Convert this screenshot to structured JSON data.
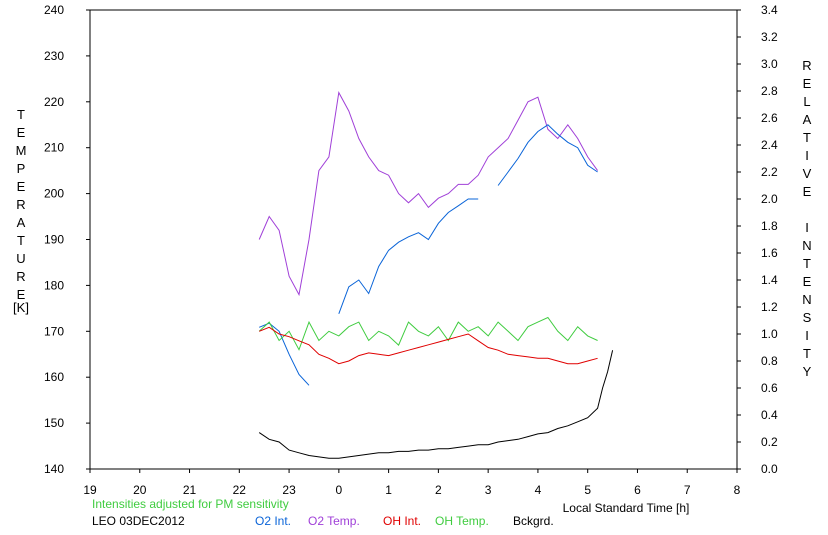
{
  "chart_data": {
    "type": "line",
    "left_axis": {
      "label": "TEMPERATURE",
      "unit_label": "[K]",
      "ylim": [
        140,
        240
      ],
      "ticks": [
        "240",
        "230",
        "220",
        "210",
        "200",
        "190",
        "180",
        "170",
        "160",
        "150",
        "140"
      ]
    },
    "right_axis": {
      "label": "RELATIVE INTENSITY",
      "ylim": [
        0.0,
        3.4
      ],
      "ticks": [
        "3.4",
        "3.2",
        "3.0",
        "2.8",
        "2.6",
        "2.4",
        "2.2",
        "2.0",
        "1.8",
        "1.6",
        "1.4",
        "1.2",
        "1.0",
        "0.8",
        "0.6",
        "0.4",
        "0.2",
        "0.0"
      ]
    },
    "x_axis": {
      "label": "Local Standard Time [h]",
      "ticks": [
        "19",
        "20",
        "21",
        "22",
        "23",
        "0",
        "1",
        "2",
        "3",
        "4",
        "5",
        "6",
        "7",
        "8"
      ]
    },
    "note": "Intensities adjusted for PM sensitivity",
    "site_date": "LEO 03DEC2012",
    "colors": {
      "O2 Int.": "#0a64d8",
      "O2 Temp.": "#a040d8",
      "OH Int.": "#e00000",
      "OH Temp.": "#40cc40",
      "Bckgrd.": "#000000"
    },
    "legend": [
      "O2 Int.",
      "O2 Temp.",
      "OH Int.",
      "OH Temp.",
      "Bckgrd."
    ],
    "series": [
      {
        "name": "O2 Temp.",
        "axis": "left",
        "x": [
          22.4,
          22.6,
          22.8,
          23.0,
          23.2,
          23.4,
          23.6,
          23.8,
          24.0,
          24.2,
          24.4,
          24.6,
          24.8,
          25.0,
          25.2,
          25.4,
          25.6,
          25.8,
          26.0,
          26.2,
          26.4,
          26.6,
          26.8,
          27.0,
          27.2,
          27.4,
          27.6,
          27.8,
          28.0,
          28.2,
          28.4,
          28.6,
          28.8,
          29.0,
          29.2
        ],
        "y": [
          190,
          195,
          192,
          182,
          178,
          190,
          205,
          208,
          222,
          218,
          212,
          208,
          205,
          204,
          200,
          198,
          200,
          197,
          199,
          200,
          202,
          202,
          204,
          208,
          210,
          212,
          216,
          220,
          221,
          214,
          212,
          215,
          212,
          208,
          205
        ]
      },
      {
        "name": "O2 Int.",
        "axis": "right",
        "x": [
          22.4,
          22.6,
          22.8,
          23.0,
          23.2,
          23.4,
          23.6,
          23.8,
          24.0,
          24.2,
          24.4,
          24.6,
          24.8,
          25.0,
          25.2,
          25.4,
          25.6,
          25.8,
          26.0,
          26.2,
          26.4,
          26.6,
          26.8,
          27.0,
          27.2,
          27.4,
          27.6,
          27.8,
          28.0,
          28.2,
          28.4,
          28.6,
          28.8,
          29.0,
          29.2
        ],
        "y": [
          1.05,
          1.08,
          1.02,
          0.85,
          0.7,
          0.62,
          null,
          null,
          1.15,
          1.35,
          1.4,
          1.3,
          1.5,
          1.62,
          1.68,
          1.72,
          1.75,
          1.7,
          1.82,
          1.9,
          1.95,
          2.0,
          2.0,
          null,
          2.1,
          2.2,
          2.3,
          2.42,
          2.5,
          2.55,
          2.48,
          2.42,
          2.38,
          2.25,
          2.2
        ]
      },
      {
        "name": "OH Temp.",
        "axis": "left",
        "x": [
          22.4,
          22.6,
          22.8,
          23.0,
          23.2,
          23.4,
          23.6,
          23.8,
          24.0,
          24.2,
          24.4,
          24.6,
          24.8,
          25.0,
          25.2,
          25.4,
          25.6,
          25.8,
          26.0,
          26.2,
          26.4,
          26.6,
          26.8,
          27.0,
          27.2,
          27.4,
          27.6,
          27.8,
          28.0,
          28.2,
          28.4,
          28.6,
          28.8,
          29.0,
          29.2
        ],
        "y": [
          170,
          172,
          168,
          170,
          166,
          172,
          168,
          170,
          169,
          171,
          172,
          168,
          170,
          169,
          167,
          172,
          170,
          169,
          171,
          168,
          172,
          170,
          171,
          169,
          172,
          170,
          168,
          171,
          172,
          173,
          170,
          168,
          171,
          169,
          168
        ]
      },
      {
        "name": "OH Int.",
        "axis": "right",
        "x": [
          22.4,
          22.6,
          22.8,
          23.0,
          23.2,
          23.4,
          23.6,
          23.8,
          24.0,
          24.2,
          24.4,
          24.6,
          24.8,
          25.0,
          25.2,
          25.4,
          25.6,
          25.8,
          26.0,
          26.2,
          26.4,
          26.6,
          26.8,
          27.0,
          27.2,
          27.4,
          27.6,
          27.8,
          28.0,
          28.2,
          28.4,
          28.6,
          28.8,
          29.0,
          29.2
        ],
        "y": [
          1.02,
          1.05,
          1.0,
          0.98,
          0.95,
          0.92,
          0.85,
          0.82,
          0.78,
          0.8,
          0.84,
          0.86,
          0.85,
          0.84,
          0.86,
          0.88,
          0.9,
          0.92,
          0.94,
          0.96,
          0.98,
          1.0,
          0.95,
          0.9,
          0.88,
          0.85,
          0.84,
          0.83,
          0.82,
          0.82,
          0.8,
          0.78,
          0.78,
          0.8,
          0.82
        ]
      },
      {
        "name": "Bckgrd.",
        "axis": "right",
        "x": [
          22.4,
          22.6,
          22.8,
          23.0,
          23.2,
          23.4,
          23.6,
          23.8,
          24.0,
          24.2,
          24.4,
          24.6,
          24.8,
          25.0,
          25.2,
          25.4,
          25.6,
          25.8,
          26.0,
          26.2,
          26.4,
          26.6,
          26.8,
          27.0,
          27.2,
          27.4,
          27.6,
          27.8,
          28.0,
          28.2,
          28.4,
          28.6,
          28.8,
          29.0,
          29.2,
          29.3,
          29.4,
          29.5
        ],
        "y": [
          0.27,
          0.22,
          0.2,
          0.14,
          0.12,
          0.1,
          0.09,
          0.08,
          0.08,
          0.09,
          0.1,
          0.11,
          0.12,
          0.12,
          0.13,
          0.13,
          0.14,
          0.14,
          0.15,
          0.15,
          0.16,
          0.17,
          0.18,
          0.18,
          0.2,
          0.21,
          0.22,
          0.24,
          0.26,
          0.27,
          0.3,
          0.32,
          0.35,
          0.38,
          0.45,
          0.6,
          0.72,
          0.88
        ]
      }
    ]
  }
}
